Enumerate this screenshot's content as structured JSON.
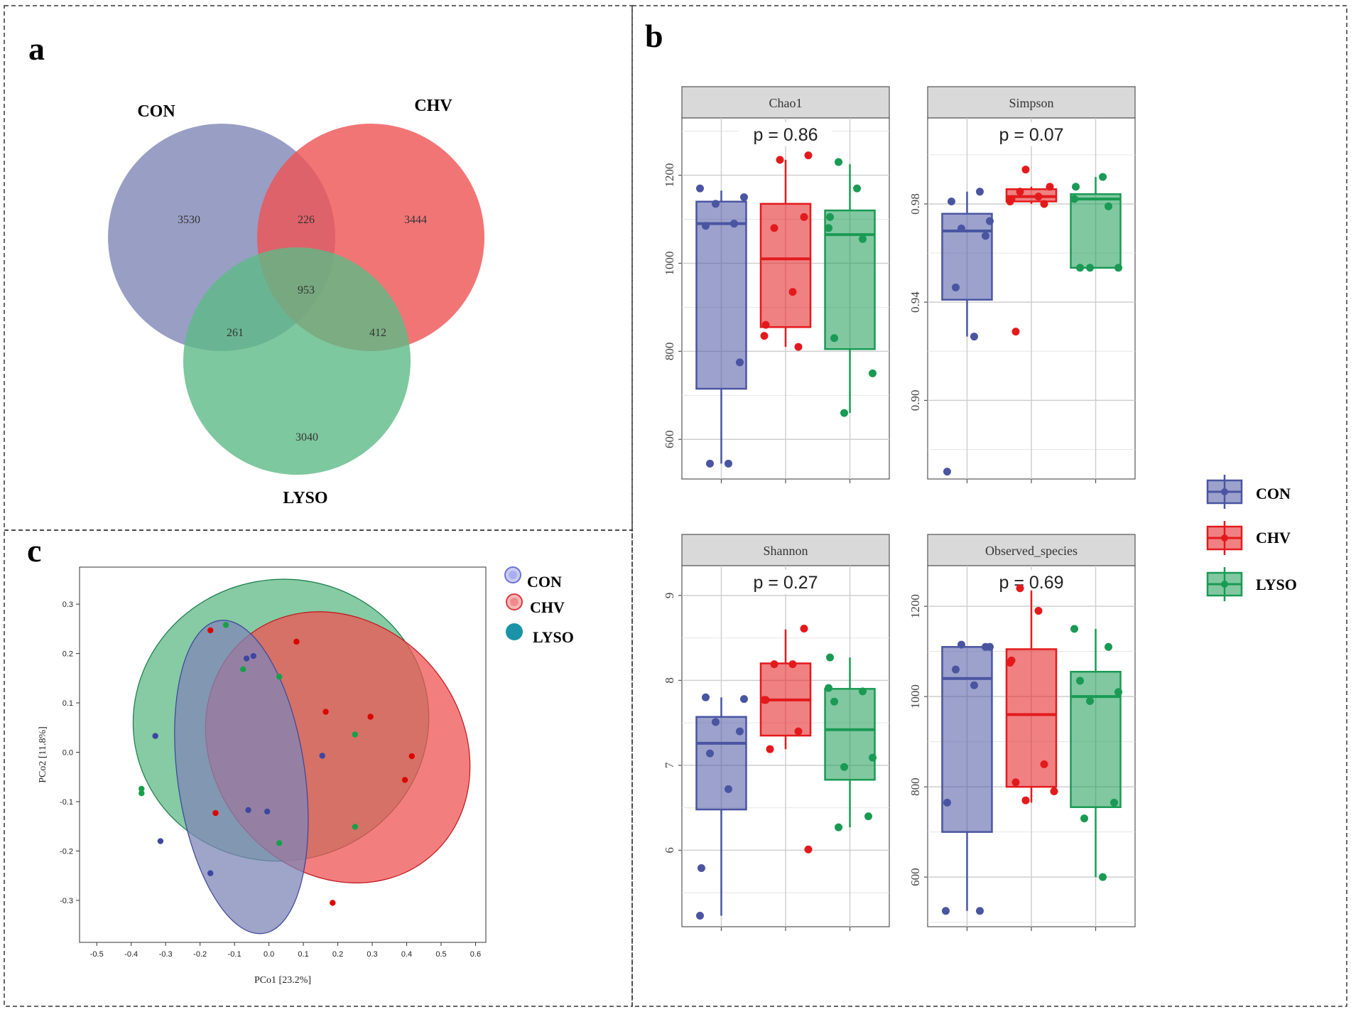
{
  "panels": {
    "a": "a",
    "b": "b",
    "c": "c"
  },
  "colors": {
    "CON": "#4a55a2",
    "CHV": "#e31a1c",
    "LYSO": "#1a9a54",
    "venn_CON": "#7f86b7",
    "venn_CHV": "#ef5353",
    "venn_LYSO": "#5dba86",
    "pcoa_CON": "#3d46a0",
    "pcoa_CHV": "#dd0000",
    "pcoa_LYSO": "#17a04a"
  },
  "chart_data": [
    {
      "id": "venn",
      "type": "venn",
      "sets": [
        "CON",
        "CHV",
        "LYSO"
      ],
      "regions": [
        {
          "sets": [
            "CON"
          ],
          "value": 3530
        },
        {
          "sets": [
            "CHV"
          ],
          "value": 3444
        },
        {
          "sets": [
            "LYSO"
          ],
          "value": 3040
        },
        {
          "sets": [
            "CON",
            "CHV"
          ],
          "value": 226
        },
        {
          "sets": [
            "CON",
            "LYSO"
          ],
          "value": 261
        },
        {
          "sets": [
            "CHV",
            "LYSO"
          ],
          "value": 412
        },
        {
          "sets": [
            "CON",
            "CHV",
            "LYSO"
          ],
          "value": 953
        }
      ]
    },
    {
      "id": "alpha",
      "type": "box",
      "groups": [
        "CON",
        "CHV",
        "LYSO"
      ],
      "legend": [
        "CON",
        "CHV",
        "LYSO"
      ],
      "facets": [
        {
          "title": "Chao1",
          "pvalue": "p = 0.86",
          "ylim": [
            510,
            1330
          ],
          "yticks": [
            600,
            800,
            1000,
            1200
          ],
          "ytick_labels": [
            "600",
            "800",
            "1000",
            "1200"
          ],
          "boxes": [
            {
              "group": "CON",
              "q1": 715,
              "median": 1090,
              "q3": 1140,
              "lower": 545,
              "upper": 1165
            },
            {
              "group": "CHV",
              "q1": 855,
              "median": 1010,
              "q3": 1135,
              "lower": 810,
              "upper": 1235
            },
            {
              "group": "LYSO",
              "q1": 805,
              "median": 1065,
              "q3": 1120,
              "lower": 660,
              "upper": 1225
            }
          ],
          "points": [
            {
              "group": "CON",
              "values": [
                1170,
                1090,
                1085,
                1150,
                1135,
                775,
                545,
                545
              ]
            },
            {
              "group": "CHV",
              "values": [
                1245,
                1235,
                1105,
                1080,
                935,
                860,
                835,
                810
              ]
            },
            {
              "group": "LYSO",
              "values": [
                1230,
                1170,
                1105,
                1080,
                1055,
                830,
                750,
                660
              ]
            }
          ]
        },
        {
          "title": "Simpson",
          "pvalue": "p = 0.07",
          "ylim": [
            0.868,
            1.015
          ],
          "yticks": [
            0.9,
            0.94,
            0.98
          ],
          "ytick_labels": [
            "0.90",
            "0.94",
            "0.98"
          ],
          "boxes": [
            {
              "group": "CON",
              "q1": 0.941,
              "median": 0.969,
              "q3": 0.976,
              "lower": 0.926,
              "upper": 0.985
            },
            {
              "group": "CHV",
              "q1": 0.981,
              "median": 0.983,
              "q3": 0.986,
              "lower": 0.98,
              "upper": 0.987
            },
            {
              "group": "LYSO",
              "q1": 0.954,
              "median": 0.982,
              "q3": 0.984,
              "lower": 0.954,
              "upper": 0.991
            }
          ],
          "points": [
            {
              "group": "CON",
              "values": [
                0.985,
                0.981,
                0.973,
                0.97,
                0.967,
                0.946,
                0.926,
                0.871
              ]
            },
            {
              "group": "CHV",
              "values": [
                0.994,
                0.987,
                0.985,
                0.983,
                0.982,
                0.981,
                0.98,
                0.928
              ]
            },
            {
              "group": "LYSO",
              "values": [
                0.991,
                0.987,
                0.982,
                0.979,
                0.954,
                0.954,
                0.954
              ]
            }
          ]
        },
        {
          "title": "Shannon",
          "pvalue": "p = 0.27",
          "ylim": [
            5.1,
            9.35
          ],
          "yticks": [
            6,
            7,
            8,
            9
          ],
          "ytick_labels": [
            "6",
            "7",
            "8",
            "9"
          ],
          "boxes": [
            {
              "group": "CON",
              "q1": 6.48,
              "median": 7.26,
              "q3": 7.57,
              "lower": 5.23,
              "upper": 7.8
            },
            {
              "group": "CHV",
              "q1": 7.35,
              "median": 7.77,
              "q3": 8.2,
              "lower": 7.19,
              "upper": 8.6
            },
            {
              "group": "LYSO",
              "q1": 6.83,
              "median": 7.42,
              "q3": 7.9,
              "lower": 6.27,
              "upper": 8.27
            }
          ],
          "points": [
            {
              "group": "CON",
              "values": [
                7.8,
                7.78,
                7.51,
                7.4,
                7.14,
                6.72,
                5.79,
                5.23
              ]
            },
            {
              "group": "CHV",
              "values": [
                8.61,
                8.19,
                8.19,
                7.77,
                7.77,
                7.4,
                7.19,
                6.01
              ]
            },
            {
              "group": "LYSO",
              "values": [
                8.27,
                7.91,
                7.87,
                7.75,
                7.09,
                6.98,
                6.4,
                6.27
              ]
            }
          ]
        },
        {
          "title": "Observed_species",
          "pvalue": "p = 0.69",
          "ylim": [
            490,
            1290
          ],
          "yticks": [
            600,
            800,
            1000,
            1200
          ],
          "ytick_labels": [
            "600",
            "800",
            "1000",
            "1200"
          ],
          "boxes": [
            {
              "group": "CON",
              "q1": 700,
              "median": 1040,
              "q3": 1110,
              "lower": 525,
              "upper": 1110
            },
            {
              "group": "CHV",
              "q1": 800,
              "median": 960,
              "q3": 1105,
              "lower": 765,
              "upper": 1235
            },
            {
              "group": "LYSO",
              "q1": 755,
              "median": 1000,
              "q3": 1055,
              "lower": 600,
              "upper": 1150
            }
          ],
          "points": [
            {
              "group": "CON",
              "values": [
                1110,
                1115,
                1110,
                1060,
                1025,
                765,
                525,
                525
              ]
            },
            {
              "group": "CHV",
              "values": [
                1240,
                1190,
                1080,
                1075,
                850,
                810,
                790,
                770
              ]
            },
            {
              "group": "LYSO",
              "values": [
                1150,
                1110,
                1035,
                1010,
                990,
                765,
                730,
                600
              ]
            }
          ]
        }
      ]
    },
    {
      "id": "pcoa",
      "type": "scatter",
      "xlabel": "PCo1 [23.2%]",
      "ylabel": "PCo2 [11.8%]",
      "xlim": [
        -0.55,
        0.63
      ],
      "ylim": [
        -0.385,
        0.375
      ],
      "xticks": [
        -0.5,
        -0.4,
        -0.3,
        -0.2,
        -0.1,
        0.0,
        0.1,
        0.2,
        0.3,
        0.4,
        0.5,
        0.6
      ],
      "xtick_labels": [
        "-0.5",
        "-0.4",
        "-0.3",
        "-0.2",
        "-0.1",
        "0.0",
        "0.1",
        "0.2",
        "0.3",
        "0.4",
        "0.5",
        "0.6"
      ],
      "yticks": [
        -0.3,
        -0.2,
        -0.1,
        0.0,
        0.1,
        0.2,
        0.3
      ],
      "ytick_labels": [
        "-0.3",
        "-0.2",
        "-0.1",
        "0.0",
        "0.1",
        "0.2",
        "0.3"
      ],
      "legend": [
        "CON",
        "CHV",
        "LYSO"
      ],
      "ellipses": [
        {
          "group": "LYSO",
          "cx": 0.035,
          "cy": 0.065,
          "rx": 0.43,
          "ry": 0.285,
          "angle": -10
        },
        {
          "group": "CHV",
          "cx": 0.2,
          "cy": 0.01,
          "rx": 0.36,
          "ry": 0.29,
          "angle": -40
        },
        {
          "group": "CON",
          "cx": -0.08,
          "cy": -0.05,
          "rx": 0.185,
          "ry": 0.32,
          "angle": -8
        }
      ],
      "series": [
        {
          "name": "CON",
          "points": [
            [
              -0.045,
              0.195
            ],
            [
              -0.065,
              0.19
            ],
            [
              -0.33,
              0.033
            ],
            [
              0.155,
              -0.007
            ],
            [
              -0.06,
              -0.117
            ],
            [
              -0.005,
              -0.12
            ],
            [
              -0.315,
              -0.18
            ],
            [
              -0.17,
              -0.245
            ]
          ]
        },
        {
          "name": "CHV",
          "points": [
            [
              -0.17,
              0.247
            ],
            [
              0.08,
              0.224
            ],
            [
              0.165,
              0.082
            ],
            [
              0.295,
              0.072
            ],
            [
              0.415,
              -0.008
            ],
            [
              0.395,
              -0.056
            ],
            [
              -0.155,
              -0.123
            ],
            [
              0.185,
              -0.305
            ]
          ]
        },
        {
          "name": "LYSO",
          "points": [
            [
              -0.125,
              0.258
            ],
            [
              -0.075,
              0.168
            ],
            [
              0.03,
              0.153
            ],
            [
              0.25,
              0.036
            ],
            [
              -0.37,
              -0.074
            ],
            [
              -0.37,
              -0.083
            ],
            [
              0.25,
              -0.151
            ],
            [
              0.03,
              -0.184
            ]
          ]
        }
      ]
    }
  ]
}
